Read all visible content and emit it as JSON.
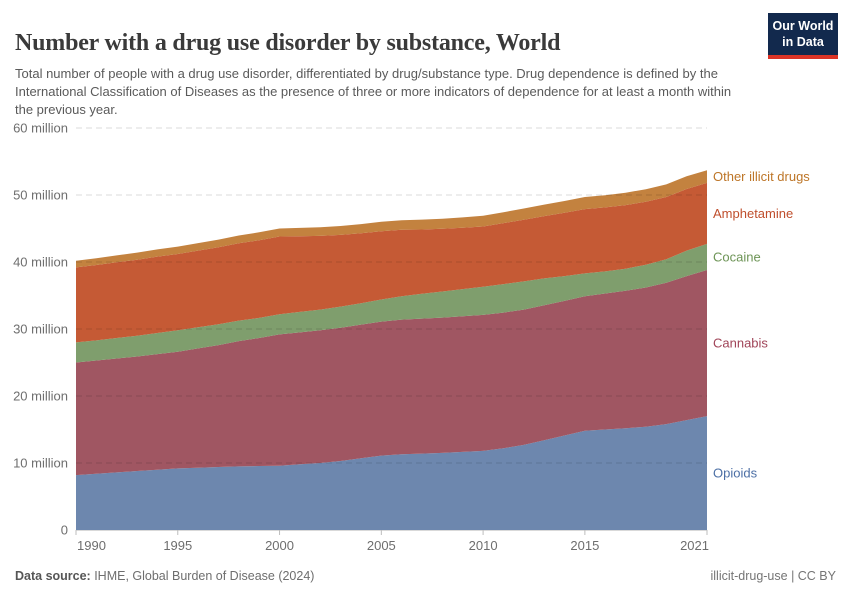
{
  "header": {
    "title": "Number with a drug use disorder by substance, World",
    "subtitle": "Total number of people with a drug use disorder, differentiated by drug/substance type. Drug dependence is defined by the International Classification of Diseases as the presence of three or more indicators of dependence for at least a month within the previous year.",
    "logo": {
      "line1": "Our World",
      "line2": "in Data"
    }
  },
  "chart_data": {
    "type": "area",
    "stacked": true,
    "title": "Number with a drug use disorder by substance, World",
    "xlabel": "",
    "ylabel": "",
    "ylim": [
      0,
      60
    ],
    "grid": true,
    "legend_position": "right",
    "x": [
      1990,
      1991,
      1992,
      1993,
      1994,
      1995,
      1996,
      1997,
      1998,
      1999,
      2000,
      2001,
      2002,
      2003,
      2004,
      2005,
      2006,
      2007,
      2008,
      2009,
      2010,
      2011,
      2012,
      2013,
      2014,
      2015,
      2016,
      2017,
      2018,
      2019,
      2020,
      2021
    ],
    "unit": "million",
    "series": [
      {
        "name": "Opioids",
        "color": "#6d87ae",
        "label_color": "#4c6fa5",
        "values": [
          8.2,
          8.4,
          8.6,
          8.8,
          9.0,
          9.2,
          9.3,
          9.4,
          9.5,
          9.55,
          9.6,
          9.8,
          10.0,
          10.3,
          10.7,
          11.1,
          11.3,
          11.4,
          11.5,
          11.65,
          11.8,
          12.2,
          12.7,
          13.4,
          14.1,
          14.8,
          15.0,
          15.2,
          15.4,
          15.8,
          16.4,
          17.0
        ]
      },
      {
        "name": "Cannabis",
        "color": "#a05662",
        "label_color": "#a04458",
        "values": [
          16.8,
          16.9,
          17.0,
          17.1,
          17.25,
          17.4,
          17.8,
          18.2,
          18.7,
          19.1,
          19.6,
          19.7,
          19.8,
          19.9,
          19.95,
          20.0,
          20.1,
          20.15,
          20.2,
          20.25,
          20.3,
          20.25,
          20.2,
          20.15,
          20.1,
          20.1,
          20.3,
          20.5,
          20.8,
          21.1,
          21.5,
          21.8
        ]
      },
      {
        "name": "Cocaine",
        "color": "#7f9e6d",
        "label_color": "#6d9456",
        "values": [
          3.0,
          3.0,
          3.05,
          3.1,
          3.15,
          3.2,
          3.15,
          3.1,
          3.05,
          3.0,
          3.0,
          3.05,
          3.1,
          3.15,
          3.2,
          3.3,
          3.5,
          3.7,
          3.9,
          4.05,
          4.2,
          4.25,
          4.2,
          4.0,
          3.7,
          3.4,
          3.3,
          3.3,
          3.4,
          3.5,
          3.8,
          3.9
        ]
      },
      {
        "name": "Amphetamine",
        "color": "#c55a35",
        "label_color": "#bf4e2c",
        "values": [
          11.2,
          11.25,
          11.3,
          11.35,
          11.4,
          11.4,
          11.45,
          11.5,
          11.55,
          11.6,
          11.6,
          11.3,
          11.0,
          10.7,
          10.45,
          10.2,
          9.9,
          9.6,
          9.35,
          9.15,
          9.0,
          9.1,
          9.2,
          9.3,
          9.45,
          9.6,
          9.55,
          9.5,
          9.4,
          9.3,
          9.2,
          9.1
        ]
      },
      {
        "name": "Other illicit drugs",
        "color": "#c3823f",
        "label_color": "#bd7527",
        "values": [
          1.0,
          1.02,
          1.04,
          1.06,
          1.08,
          1.1,
          1.12,
          1.14,
          1.16,
          1.18,
          1.2,
          1.24,
          1.28,
          1.32,
          1.36,
          1.4,
          1.44,
          1.48,
          1.52,
          1.56,
          1.6,
          1.64,
          1.68,
          1.72,
          1.76,
          1.8,
          1.82,
          1.84,
          1.86,
          1.88,
          1.89,
          1.9
        ]
      }
    ],
    "yticks": [
      {
        "value": 0,
        "label": "0"
      },
      {
        "value": 10,
        "label": "10 million"
      },
      {
        "value": 20,
        "label": "20 million"
      },
      {
        "value": 30,
        "label": "30 million"
      },
      {
        "value": 40,
        "label": "40 million"
      },
      {
        "value": 50,
        "label": "50 million"
      },
      {
        "value": 60,
        "label": "60 million"
      }
    ],
    "xticks": [
      1990,
      1995,
      2000,
      2005,
      2010,
      2015,
      2021
    ]
  },
  "footer": {
    "source_label": "Data source:",
    "source_value": " IHME, Global Burden of Disease (2024)",
    "right_text": "illicit-drug-use | CC BY"
  }
}
